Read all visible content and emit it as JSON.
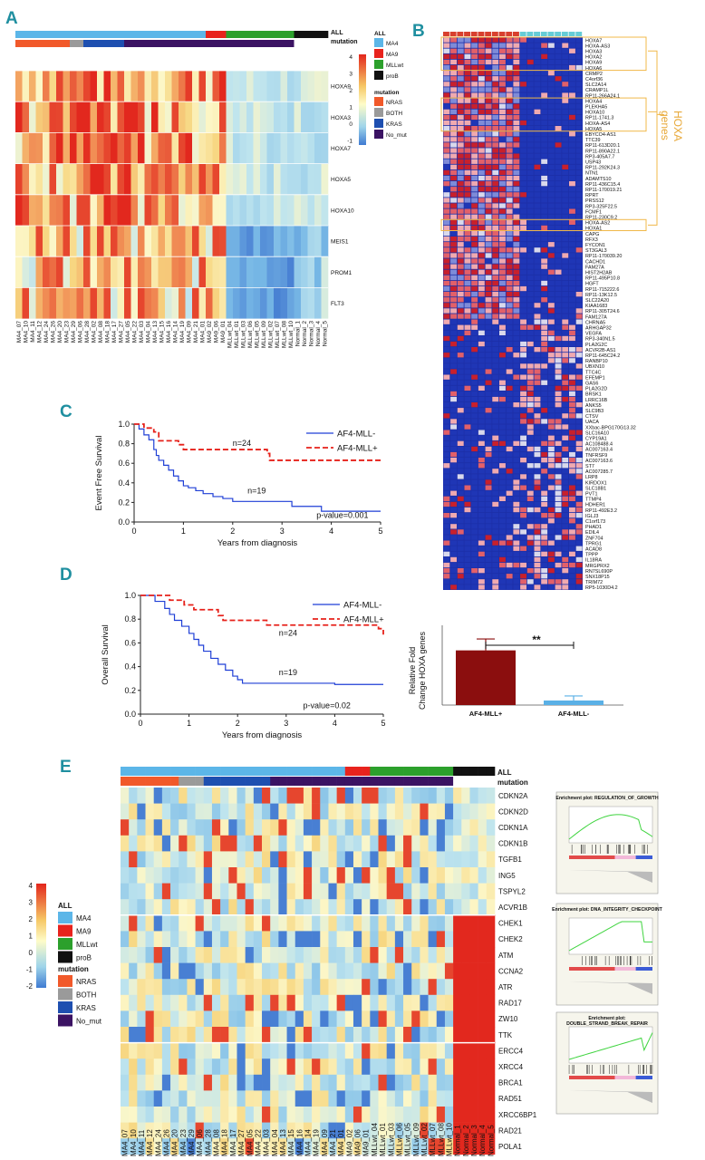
{
  "panel_letters": {
    "a": "A",
    "b": "B",
    "c": "C",
    "d": "D",
    "e": "E"
  },
  "colors": {
    "MA4": "#5cb6e8",
    "MA9": "#e8231d",
    "MLLwt": "#2ca02c",
    "proB": "#111111",
    "NRAS": "#f1592a",
    "BOTH": "#9a9a9a",
    "KRAS": "#1e4fb0",
    "No_mut": "#3b1363",
    "af4_minus": "#1f3fd6",
    "af4_plus": "#e6211a",
    "hoxa_box": "#f0b84a",
    "bar_plus": "#8b0e0e",
    "bar_minus": "#5ab0e6"
  },
  "panel_a": {
    "annotation_labels": [
      "ALL",
      "mutation"
    ],
    "legend": {
      "scale_ticks": [
        "4",
        "3",
        "2",
        "1",
        "0",
        "-1"
      ],
      "all_title": "ALL",
      "all_items": [
        "MA4",
        "MA9",
        "MLLwt",
        "proB"
      ],
      "mutation_title": "mutation",
      "mutation_items": [
        "NRAS",
        "BOTH",
        "KRAS",
        "No_mut"
      ]
    },
    "genes": [
      "HOXA9",
      "HOXA3",
      "HOXA7",
      "HOXA5",
      "HOXA10",
      "MEIS1",
      "PROM1",
      "FLT3"
    ],
    "samples": [
      "MA4_07",
      "MA4_10",
      "MA4_11",
      "MA4_12",
      "MA4_24",
      "MA4_26",
      "MA4_20",
      "MA4_23",
      "MA4_29",
      "MA4_06",
      "MA4_28",
      "MA4_02",
      "MA4_08",
      "MA4_18",
      "MA4_17",
      "MA4_27",
      "MA4_05",
      "MA4_22",
      "MA4_03",
      "MA4_04",
      "MA4_13",
      "MA4_15",
      "MA4_16",
      "MA4_14",
      "MA4_19",
      "MA4_09",
      "MA4_21",
      "MA4_01",
      "MA9_02",
      "MA9_06",
      "MA9_01",
      "MLLwt_04",
      "MLLwt_01",
      "MLLwt_03",
      "MLLwt_06",
      "MLLwt_05",
      "MLLwt_09",
      "MLLwt_02",
      "MLLwt_07",
      "MLLwt_08",
      "MLLwt_10",
      "Normal_1",
      "Normal_2",
      "Normal_3",
      "Normal_4",
      "Normal_5"
    ]
  },
  "panel_b": {
    "genes": [
      "HOXA7",
      "HOXA-AS3",
      "HOXA3",
      "HOXA2",
      "HOXA9",
      "HOXA6",
      "CRMP2",
      "C4orf36",
      "SLC2A14",
      "CRAMP1L",
      "RP11-266A24.1",
      "HOXA4",
      "PLEKHA5",
      "HOXA10",
      "RP11-1741.3",
      "HOXA-AS4",
      "HOXA5",
      "EBYCO4-AS1",
      "TTC39",
      "RP11-613D20.1",
      "RP11-890A22.1",
      "RP3-405A7.7",
      "USP43",
      "RP11-292K24.3",
      "NTN1",
      "ADAMTS10",
      "RP11-436C15.4",
      "RP11-170019.21",
      "RPRT",
      "PRSS12",
      "RP3-325F22.5",
      "FCMF1",
      "RP11-230C9.2",
      "HOXA-AS2",
      "HOXA1",
      "CAPG",
      "RFX3",
      "FYCON1",
      "ST3GAL3",
      "RP11-170039.20",
      "CACHD1",
      "FAM27A",
      "HIST2H2AB",
      "RP11-495P10.8",
      "HGFT",
      "RP11-715222.6",
      "RP11-13K12.5",
      "SLC22A20",
      "KIAA1683",
      "RP11-305T24.6",
      "FAM127A",
      "CHRNA5",
      "ARHGAP32",
      "VEGFA",
      "RP3-340N1.5",
      "PLA2G2C",
      "ACVR2B-AS1",
      "RP11-645C24.2",
      "RANBP10",
      "UBXN10",
      "TTC4C",
      "EFEMP1",
      "GAS6",
      "PLA2G2D",
      "BRSK1",
      "LRRC16B",
      "ANKS5",
      "SLC9B3",
      "CTSV",
      "UACA",
      "XXbac-BPG170G13.32",
      "SLC16A10",
      "CYP19A1",
      "AC108488.4",
      "AC007163.4",
      "TNFRSF9",
      "AC007163.6",
      "ST7",
      "AC007285.7",
      "LRP8",
      "KIRDOX1",
      "SLC18B1",
      "PVT1",
      "TTMP4",
      "HDHER1",
      "RP11-492E3.2",
      "IGLJ3",
      "C1orf173",
      "PHAD1",
      "EDIL4",
      "ZNF704",
      "TPRG1",
      "ACAD8",
      "TPPP",
      "IL18RA",
      "MRGPRX2",
      "RN7SL690P",
      "SNX18P15",
      "TRIM72",
      "RP5-1030D4.2"
    ],
    "hoxa_label": [
      "HOXA",
      "genes"
    ]
  },
  "panel_c": {
    "ylabel": "Event Free Survival",
    "xlabel": "Years from diagnosis",
    "x_ticks": [
      "0",
      "1",
      "2",
      "3",
      "4",
      "5"
    ],
    "y_ticks": [
      "0.0",
      "0.2",
      "0.4",
      "0.6",
      "0.8",
      "1.0"
    ],
    "legend_minus": "AF4-MLL-",
    "legend_plus": "AF4-MLL+",
    "n_plus": "n=24",
    "n_minus": "n=19",
    "pvalue": "p-value=0.001"
  },
  "panel_d": {
    "ylabel": "Overall Survival",
    "xlabel": "Years from diagnosis",
    "x_ticks": [
      "0",
      "1",
      "2",
      "3",
      "4",
      "5"
    ],
    "y_ticks": [
      "0.0",
      "0.2",
      "0.4",
      "0.6",
      "0.8",
      "1.0"
    ],
    "legend_minus": "AF4-MLL-",
    "legend_plus": "AF4-MLL+",
    "n_plus": "n=24",
    "n_minus": "n=19",
    "pvalue": "p-value=0.02"
  },
  "panel_bar": {
    "ylabel": [
      "Relative Fold",
      "Change HOXA genes"
    ],
    "significance": "**"
  },
  "panel_e": {
    "annotation_labels": [
      "ALL",
      "mutation"
    ],
    "genes": [
      "CDKN2A",
      "CDKN2D",
      "CDKN1A",
      "CDKN1B",
      "TGFB1",
      "ING5",
      "TSPYL2",
      "ACVR1B",
      "CHEK1",
      "CHEK2",
      "ATM",
      "CCNA2",
      "ATR",
      "RAD17",
      "ZW10",
      "TTK",
      "ERCC4",
      "XRCC4",
      "BRCA1",
      "RAD51",
      "XRCC6BP1",
      "RAD21",
      "POLA1"
    ],
    "samples": [
      "MA4_07",
      "MA4_10",
      "MA4_11",
      "MA4_12",
      "MA4_24",
      "MA4_26",
      "MA4_20",
      "MA4_23",
      "MA4_29",
      "MA4_06",
      "MA4_28",
      "MA4_08",
      "MA4_18",
      "MA4_17",
      "MA4_27",
      "MA4_05",
      "MA4_22",
      "MA4_03",
      "MA4_04",
      "MA4_13",
      "MA4_15",
      "MA4_16",
      "MA4_14",
      "MA4_19",
      "MA4_09",
      "MA4_21",
      "MA4_01",
      "MA9_02",
      "MA9_06",
      "MA9_01",
      "MLLwt_04",
      "MLLwt_01",
      "MLLwt_03",
      "MLLwt_06",
      "MLLwt_05",
      "MLLwt_09",
      "MLLwt_02",
      "MLLwt_07",
      "MLLwt_08",
      "MLLwt_10",
      "Normal_1",
      "Normal_2",
      "Normal_3",
      "Normal_4",
      "Normal_5"
    ],
    "legend": {
      "scale_ticks": [
        "4",
        "3",
        "2",
        "1",
        "0",
        "-1",
        "-2"
      ],
      "all_title": "ALL",
      "all_items": [
        "MA4",
        "MA9",
        "MLLwt",
        "proB"
      ],
      "mutation_title": "mutation",
      "mutation_items": [
        "NRAS",
        "BOTH",
        "KRAS",
        "No_mut"
      ]
    },
    "gsea": [
      {
        "title": "Enrichment plot: REGULATION_OF_GROWTH"
      },
      {
        "title": "Enrichment plot: DNA_INTEGRITY_CHECKPOINT"
      },
      {
        "title": "Enrichment plot:",
        "title2": "DOUBLE_STRAND_BREAK_REPAIR"
      }
    ]
  },
  "chart_data": [
    {
      "type": "line",
      "title": "C",
      "xlabel": "Years from diagnosis",
      "ylabel": "Event Free Survival",
      "xlim": [
        0,
        5
      ],
      "ylim": [
        0,
        1.0
      ],
      "series": [
        {
          "name": "AF4-MLL-",
          "x": [
            0,
            0.1,
            0.2,
            0.3,
            0.4,
            0.45,
            0.5,
            0.6,
            0.7,
            0.8,
            0.9,
            1.0,
            1.1,
            1.25,
            1.4,
            1.6,
            1.8,
            2.0,
            2.6,
            3.2,
            3.8,
            5.0
          ],
          "y": [
            1.0,
            0.95,
            0.89,
            0.84,
            0.74,
            0.68,
            0.63,
            0.58,
            0.53,
            0.47,
            0.42,
            0.37,
            0.35,
            0.32,
            0.29,
            0.26,
            0.24,
            0.21,
            0.21,
            0.16,
            0.11,
            0.11
          ]
        },
        {
          "name": "AF4-MLL+",
          "x": [
            0,
            0.2,
            0.4,
            0.5,
            0.9,
            1.0,
            2.7,
            2.75,
            5.0
          ],
          "y": [
            1.0,
            0.96,
            0.92,
            0.83,
            0.79,
            0.74,
            0.7,
            0.63,
            0.63
          ]
        }
      ],
      "annotations": [
        "n=24",
        "n=19",
        "p-value=0.001"
      ]
    },
    {
      "type": "line",
      "title": "D",
      "xlabel": "Years from diagnosis",
      "ylabel": "Overall Survival",
      "xlim": [
        0,
        5
      ],
      "ylim": [
        0,
        1.0
      ],
      "series": [
        {
          "name": "AF4-MLL-",
          "x": [
            0,
            0.3,
            0.5,
            0.6,
            0.7,
            0.85,
            1.0,
            1.1,
            1.2,
            1.3,
            1.45,
            1.6,
            1.75,
            1.9,
            2.0,
            2.1,
            2.3,
            4.0,
            5.0
          ],
          "y": [
            1.0,
            0.95,
            0.89,
            0.84,
            0.79,
            0.74,
            0.68,
            0.63,
            0.58,
            0.53,
            0.47,
            0.42,
            0.37,
            0.32,
            0.29,
            0.26,
            0.26,
            0.25,
            0.25
          ]
        },
        {
          "name": "AF4-MLL+",
          "x": [
            0,
            0.6,
            0.9,
            1.1,
            1.6,
            1.7,
            2.6,
            4.2,
            4.9,
            5.0
          ],
          "y": [
            1.0,
            0.96,
            0.92,
            0.88,
            0.83,
            0.79,
            0.75,
            0.75,
            0.72,
            0.67
          ]
        }
      ],
      "annotations": [
        "n=24",
        "n=19",
        "p-value=0.02"
      ]
    },
    {
      "type": "bar",
      "categories": [
        "AF4-MLL+",
        "AF4-MLL-"
      ],
      "values": [
        24,
        2
      ],
      "errors": [
        5,
        2
      ],
      "ylabel": "Relative Fold Change HOXA genes",
      "annotations": [
        "**"
      ]
    },
    {
      "type": "heatmap",
      "title": "A",
      "rows": [
        "HOXA9",
        "HOXA3",
        "HOXA7",
        "HOXA5",
        "HOXA10",
        "MEIS1",
        "PROM1",
        "FLT3"
      ],
      "color_range": [
        -1,
        4
      ]
    },
    {
      "type": "heatmap",
      "title": "E",
      "rows": [
        "CDKN2A",
        "CDKN2D",
        "CDKN1A",
        "CDKN1B",
        "TGFB1",
        "ING5",
        "TSPYL2",
        "ACVR1B",
        "CHEK1",
        "CHEK2",
        "ATM",
        "CCNA2",
        "ATR",
        "RAD17",
        "ZW10",
        "TTK",
        "ERCC4",
        "XRCC4",
        "BRCA1",
        "RAD51",
        "XRCC6BP1",
        "RAD21",
        "POLA1"
      ],
      "color_range": [
        -2,
        4
      ]
    }
  ]
}
